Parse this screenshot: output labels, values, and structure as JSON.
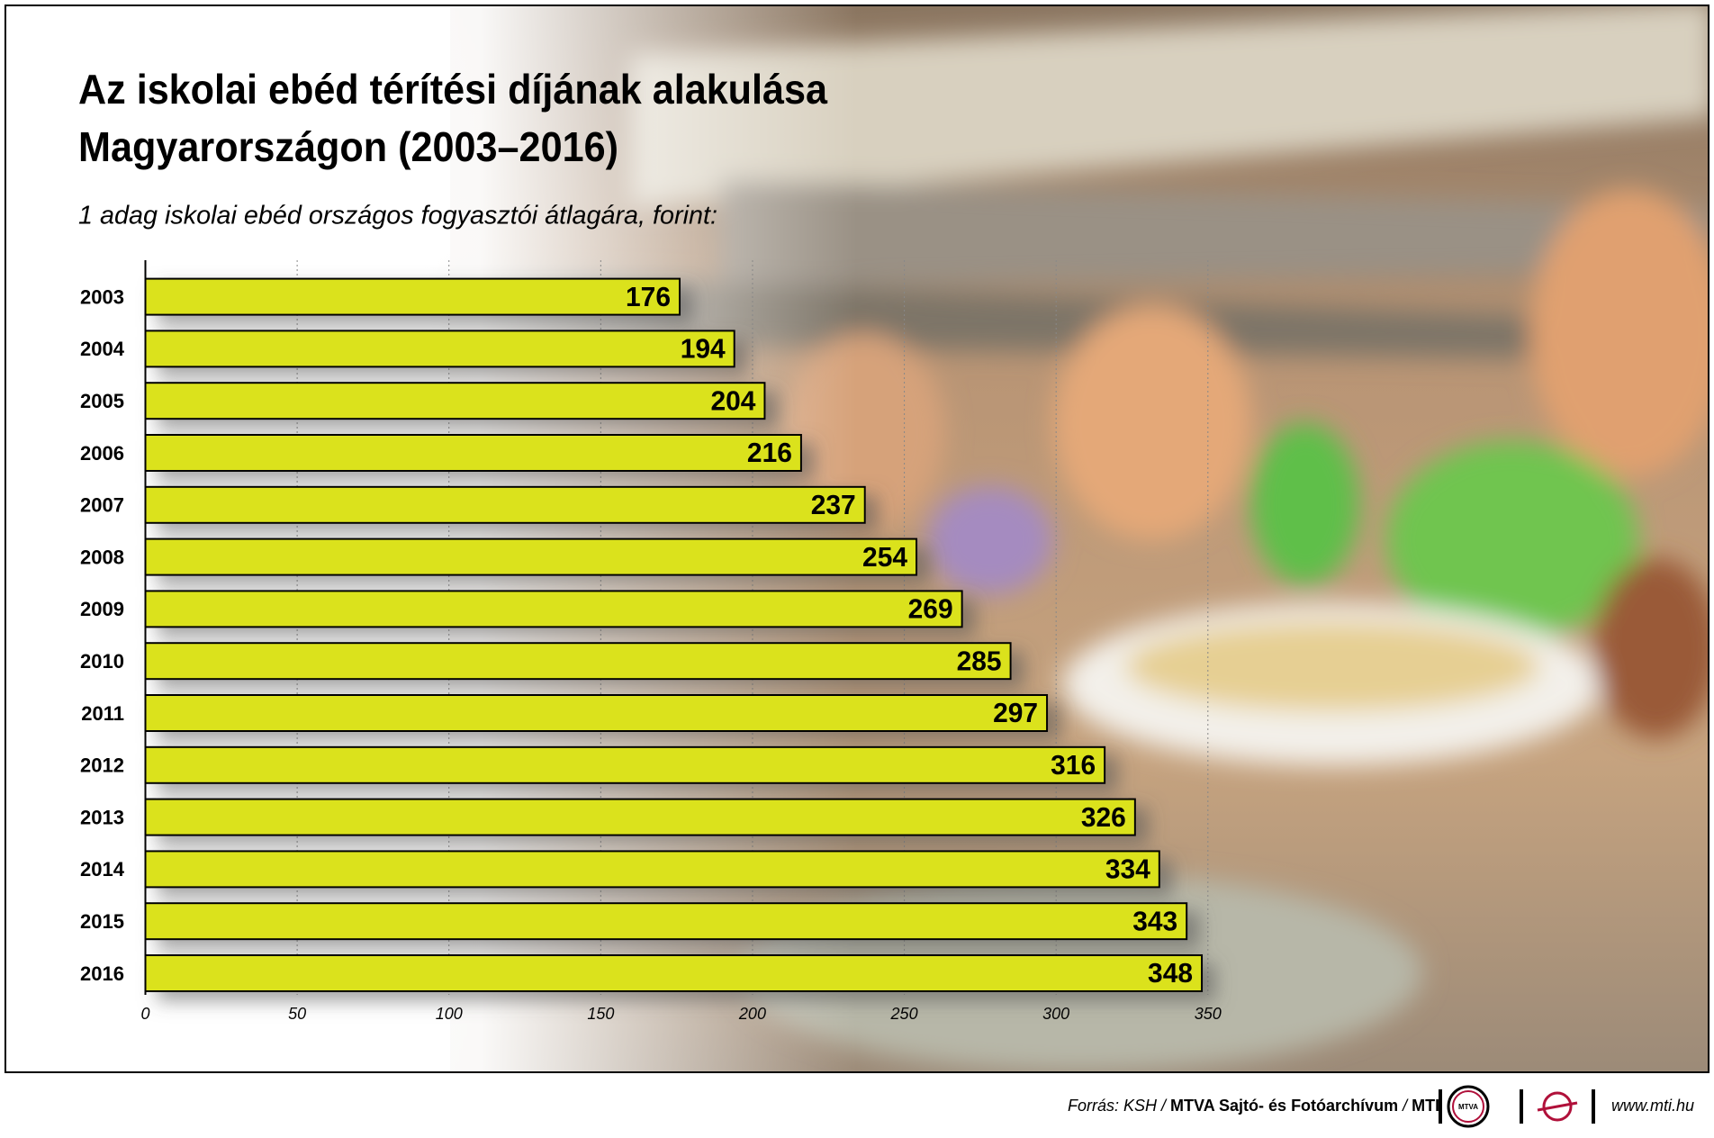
{
  "chart_data": {
    "type": "bar",
    "orientation": "horizontal",
    "title": [
      "Az iskolai ebéd térítési díjának alakulása",
      "Magyarországon (2003–2016)"
    ],
    "subtitle": "1 adag iskolai ebéd országos fogyasztói átlagára, forint:",
    "categories": [
      "2003",
      "2004",
      "2005",
      "2006",
      "2007",
      "2008",
      "2009",
      "2010",
      "2011",
      "2012",
      "2013",
      "2014",
      "2015",
      "2016"
    ],
    "values": [
      176,
      194,
      204,
      216,
      237,
      254,
      269,
      285,
      297,
      316,
      326,
      334,
      343,
      348
    ],
    "color": "#dbe21f",
    "xlim": [
      0,
      350
    ],
    "xticks": [
      0,
      50,
      100,
      150,
      200,
      250,
      300,
      350
    ],
    "grid": true
  },
  "footer": {
    "source_parts": [
      "Forrás: KSH /",
      "MTVA Sajtó- és Fotóarchívum",
      "/",
      "MTI"
    ],
    "logo": "MTVA",
    "url": "www.mti.hu"
  }
}
